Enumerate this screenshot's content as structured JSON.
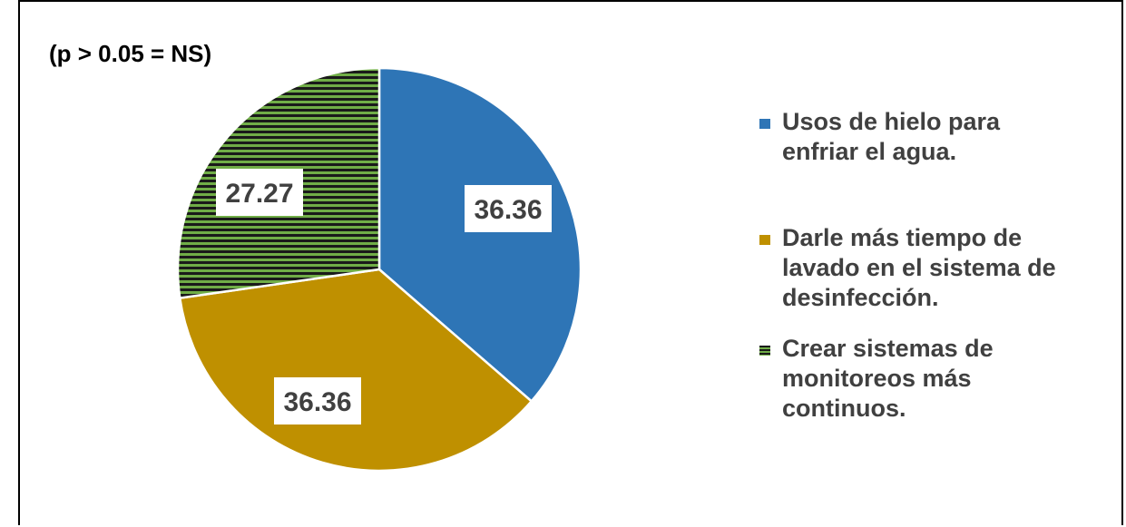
{
  "note": "(p > 0.05 = NS)",
  "chart_data": {
    "type": "pie",
    "title": "",
    "slices": [
      {
        "label": "Usos de hielo para enfriar el agua.",
        "value": 36.36,
        "color": "#2E75B6"
      },
      {
        "label": "Darle más tiempo de lavado en el sistema de desinfección.",
        "value": 36.36,
        "color": "#BF9000"
      },
      {
        "label": "Crear sistemas de monitoreos más continuos.",
        "value": 27.27,
        "color": "#548235",
        "pattern": "horizontal-stripes"
      }
    ],
    "data_labels": [
      "36.36",
      "36.36",
      "27.27"
    ],
    "legend_position": "right"
  },
  "legend": {
    "items": [
      {
        "line1": " Usos de hielo para",
        "line2": "enfriar el agua.",
        "line3": ""
      },
      {
        "line1": " Darle más tiempo de",
        "line2": "lavado en el sistema de",
        "line3": "desinfección."
      },
      {
        "line1": "  Crear sistemas de",
        "line2": "monitoreos más",
        "line3": "continuos."
      }
    ]
  }
}
